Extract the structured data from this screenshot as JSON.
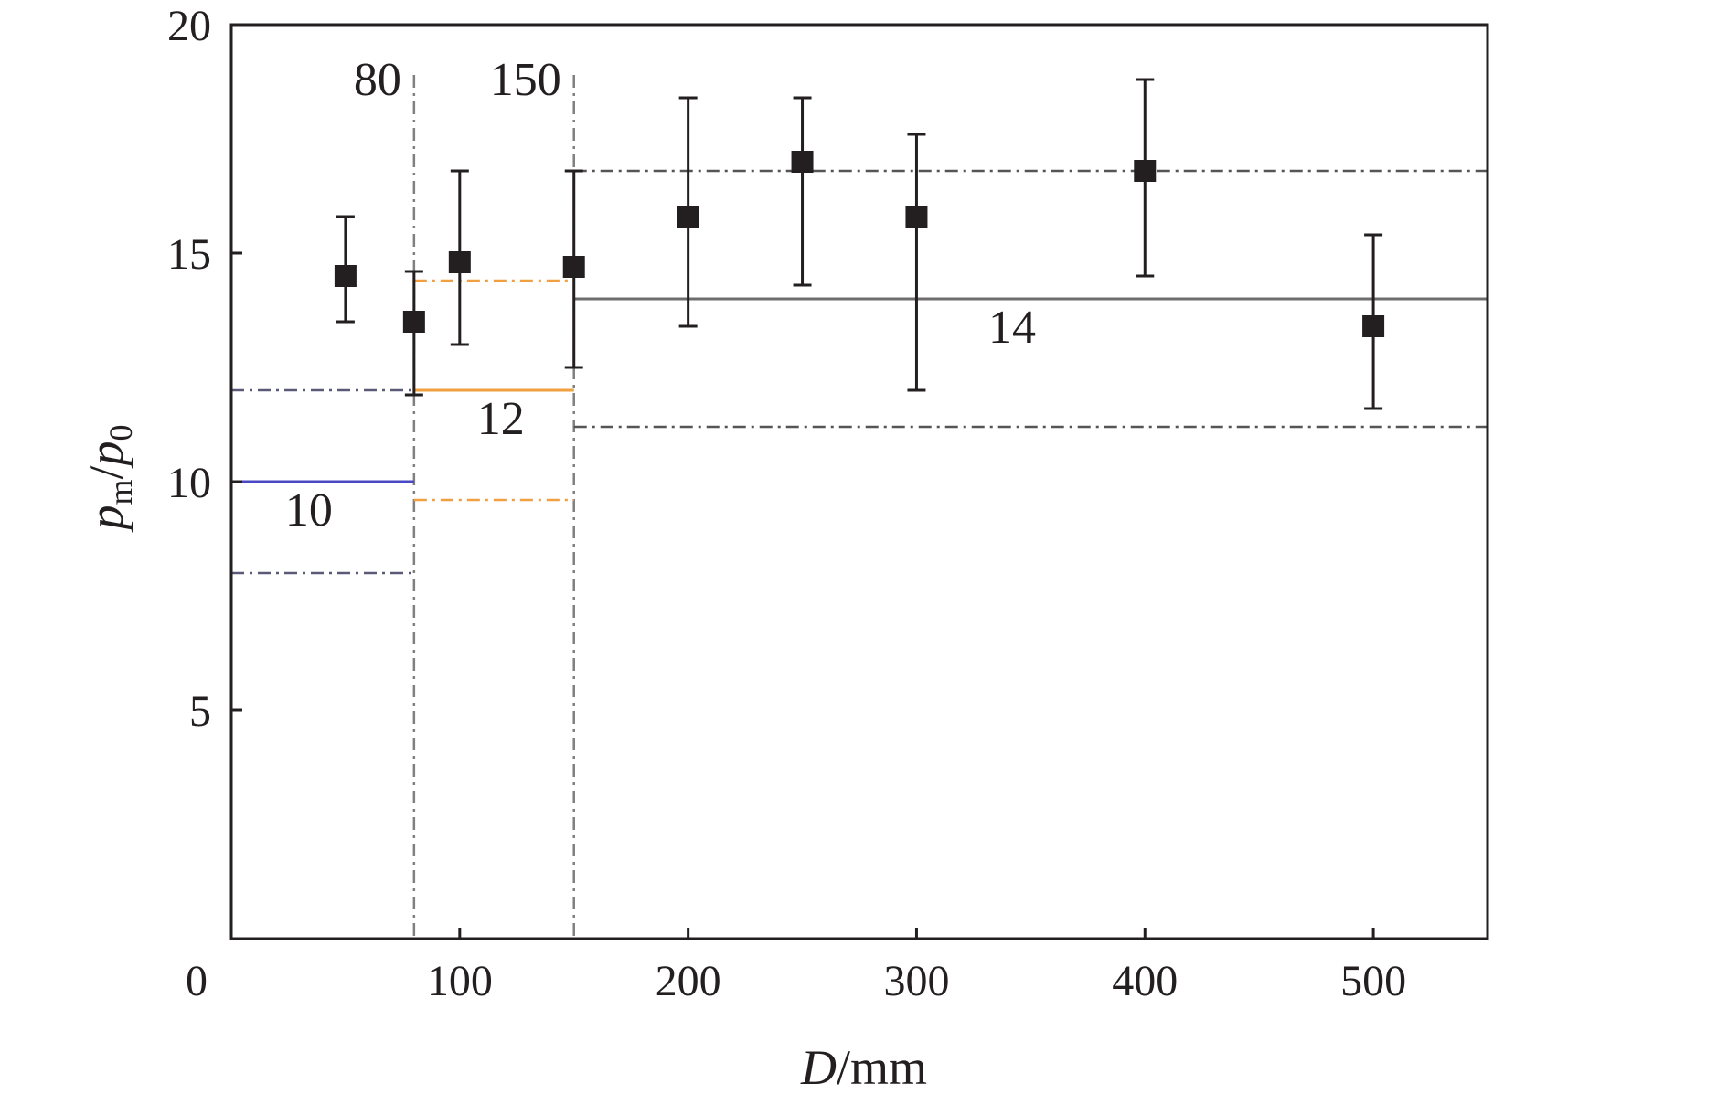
{
  "chart_data": {
    "type": "scatter",
    "title": "",
    "xlabel": {
      "var": "D",
      "unit": "/mm"
    },
    "ylabel": {
      "num_var": "p",
      "num_sub": "m",
      "sep": "/",
      "den_var": "p",
      "den_sub": "0"
    },
    "xlim": [
      0,
      550
    ],
    "ylim": [
      0,
      20
    ],
    "x_ticks": [
      0,
      100,
      200,
      300,
      400,
      500
    ],
    "x_tick_labels": [
      "0",
      "100",
      "200",
      "300",
      "400",
      "500"
    ],
    "y_ticks": [
      5,
      10,
      15,
      20
    ],
    "y_tick_labels": [
      "5",
      "10",
      "15",
      "20"
    ],
    "grid": false,
    "series": [
      {
        "marker": "filled-square",
        "color": "#231f20",
        "points": [
          {
            "x": 50,
            "y": 14.5,
            "err_low": 13.5,
            "err_high": 15.8
          },
          {
            "x": 80,
            "y": 13.5,
            "err_low": 11.9,
            "err_high": 14.6
          },
          {
            "x": 100,
            "y": 14.8,
            "err_low": 13.0,
            "err_high": 16.8
          },
          {
            "x": 150,
            "y": 14.7,
            "err_low": 12.5,
            "err_high": 16.8
          },
          {
            "x": 200,
            "y": 15.8,
            "err_low": 13.4,
            "err_high": 18.4
          },
          {
            "x": 250,
            "y": 17.0,
            "err_low": 14.3,
            "err_high": 18.4
          },
          {
            "x": 300,
            "y": 15.8,
            "err_low": 12.0,
            "err_high": 17.6
          },
          {
            "x": 400,
            "y": 16.8,
            "err_low": 14.5,
            "err_high": 18.8
          },
          {
            "x": 500,
            "y": 13.4,
            "err_low": 11.6,
            "err_high": 15.4
          }
        ]
      }
    ],
    "vertical_lines": [
      {
        "x": 80,
        "label": "80",
        "style": "dash-dot",
        "color": "#808080"
      },
      {
        "x": 150,
        "label": "150",
        "style": "dash-dot",
        "color": "#808080"
      }
    ],
    "segments": [
      {
        "x1": 0,
        "x2": 80,
        "y": 10,
        "style": "solid",
        "color": "#4a47c4",
        "label": "10"
      },
      {
        "x1": 0,
        "x2": 80,
        "y": 12,
        "style": "dash-dot",
        "color": "#5a5a78"
      },
      {
        "x1": 0,
        "x2": 80,
        "y": 8,
        "style": "dash-dot",
        "color": "#5a5a78"
      },
      {
        "x1": 80,
        "x2": 150,
        "y": 12,
        "style": "solid",
        "color": "#f0a040",
        "label": "12"
      },
      {
        "x1": 80,
        "x2": 150,
        "y": 14.4,
        "style": "dash-dot",
        "color": "#f0a040"
      },
      {
        "x1": 80,
        "x2": 150,
        "y": 9.6,
        "style": "dash-dot",
        "color": "#f0a040"
      },
      {
        "x1": 150,
        "x2": 550,
        "y": 14,
        "style": "solid",
        "color": "#6d6d6d",
        "label": "14"
      },
      {
        "x1": 150,
        "x2": 550,
        "y": 16.8,
        "style": "dash-dot",
        "color": "#555555"
      },
      {
        "x1": 150,
        "x2": 550,
        "y": 11.2,
        "style": "dash-dot",
        "color": "#555555"
      }
    ]
  }
}
